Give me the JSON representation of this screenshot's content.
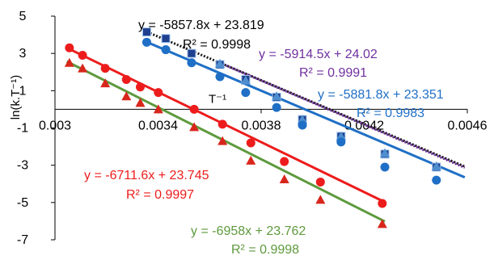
{
  "chart_data": {
    "type": "scatter",
    "xlabel": "T⁻¹",
    "ylabel": "ln(k.T⁻¹)",
    "xlim": [
      0.003,
      0.0046
    ],
    "ylim": [
      -7,
      5
    ],
    "x_ticks": [
      "0.003",
      "0.0034",
      "0.0038",
      "0.0042",
      "0.0046"
    ],
    "y_ticks": [
      "5",
      "3",
      "1",
      "-1",
      "-3",
      "-5",
      "-7"
    ],
    "grid": false,
    "series": [
      {
        "marker": "square",
        "color": "#1f3f8f",
        "line_color": "#1a1a1a",
        "line_style": "dotted",
        "x": [
          0.003356,
          0.00343,
          0.00353,
          0.00364,
          0.00374,
          0.00386,
          0.00396,
          0.00411,
          0.00428,
          0.00448,
          0.00458
        ],
        "y": [
          4.15,
          3.8,
          3.0,
          2.4,
          1.6,
          0.65,
          -0.55,
          -1.45,
          -2.4,
          -3.1,
          null
        ],
        "fit": {
          "slope": -5857.8,
          "intercept": 23.819
        },
        "equation": "y = -5857.8x + 23.819",
        "r2": "R² = 0.9998",
        "equation_color": "#000000"
      },
      {
        "marker": "triangle",
        "color": "#4f8fcf",
        "line_color": "#7030a0",
        "line_style": "dotted",
        "x": [
          0.00364,
          0.00374,
          0.00386,
          0.00396,
          0.00411,
          0.00428,
          0.00448,
          0.00458
        ],
        "y": [
          2.45,
          1.55,
          0.7,
          -0.55,
          -1.45,
          -2.35,
          -3.05,
          null
        ],
        "fit": {
          "slope": -5914.5,
          "intercept": 24.02
        },
        "equation": "y = -5914.5x + 24.02",
        "r2": "R² = 0.9991",
        "equation_color": "#7030a0"
      },
      {
        "marker": "circle",
        "color": "#1f6fc6",
        "line_color": "#1f6fc6",
        "line_style": "solid",
        "x": [
          0.003356,
          0.00343,
          0.00353,
          0.00364,
          0.00374,
          0.00386,
          0.00396,
          0.00411,
          0.00428,
          0.00448,
          0.00458
        ],
        "y": [
          3.6,
          3.2,
          2.5,
          1.75,
          0.9,
          0.1,
          -0.85,
          -1.75,
          -3.1,
          -3.8,
          null
        ],
        "fit": {
          "slope": -5881.8,
          "intercept": 23.351
        },
        "equation": "y = -5881.8x + 23.351",
        "r2": "R² = 0.9983",
        "equation_color": "#1f6fc6"
      },
      {
        "marker": "circle",
        "color": "#ed1c1c",
        "line_color": "#ed1c1c",
        "line_style": "solid",
        "x": [
          0.003056,
          0.003107,
          0.003195,
          0.003277,
          0.003331,
          0.003401,
          0.00354,
          0.00365,
          0.00376,
          0.00389,
          0.00403,
          0.00427
        ],
        "y": [
          3.3,
          2.9,
          2.2,
          1.6,
          1.2,
          0.9,
          0.0,
          -0.8,
          -1.8,
          -2.8,
          -3.9,
          -5.05
        ],
        "fit": {
          "slope": -6711.6,
          "intercept": 23.745
        },
        "equation": "y = -6711.6x + 23.745",
        "r2": "R² = 0.9997",
        "equation_color": "#ed1c1c"
      },
      {
        "marker": "triangle",
        "color": "#d8261c",
        "line_color": "#5e9a3e",
        "line_style": "solid",
        "x": [
          0.003056,
          0.003107,
          0.003195,
          0.003277,
          0.003331,
          0.003401,
          0.00354,
          0.00365,
          0.00376,
          0.00389,
          0.00403,
          0.00427
        ],
        "y": [
          2.5,
          2.2,
          1.4,
          0.7,
          0.35,
          0.0,
          -0.95,
          -1.7,
          -2.75,
          -3.75,
          -4.85,
          -6.15
        ],
        "fit": {
          "slope": -6958,
          "intercept": 23.762
        },
        "equation": "y = -6958x + 23.762",
        "r2": "R² = 0.9998",
        "equation_color": "#5e9a3e"
      }
    ]
  }
}
